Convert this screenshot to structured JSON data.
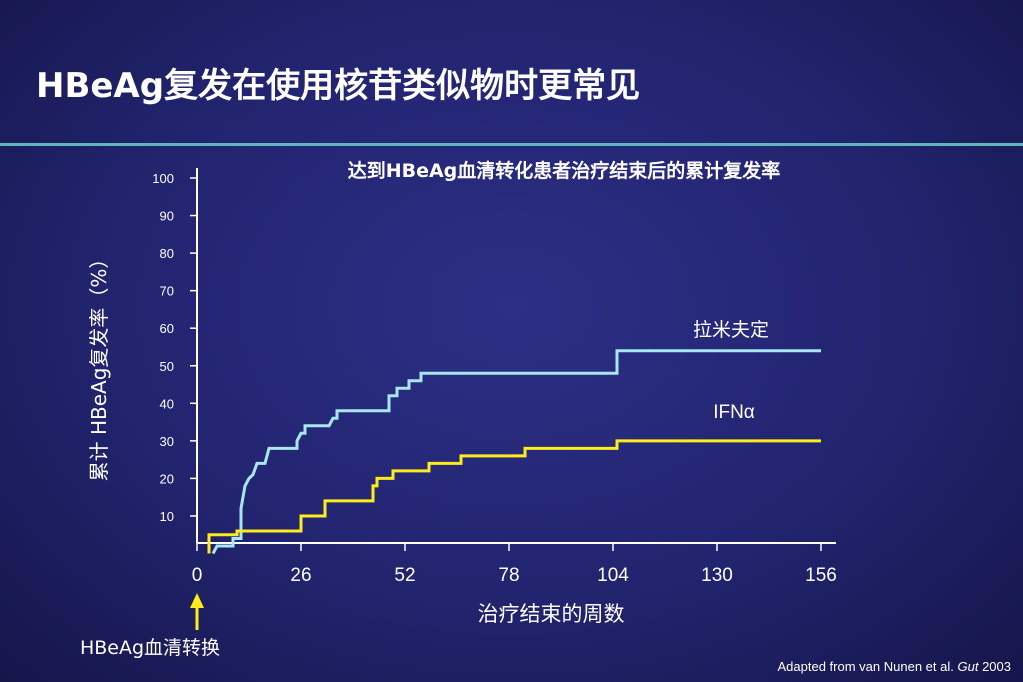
{
  "slide": {
    "title": "HBeAg复发在使用核苷类似物时更常见",
    "citation_prefix": "Adapted from van Nunen et al.",
    "citation_journal": "Gut",
    "citation_year": "2003"
  },
  "colors": {
    "background": "#22246f",
    "title_rule": "#5fb7bd",
    "lamivudine": "#a8e6f0",
    "ifn": "#ffec1a",
    "arrow": "#ffec1a"
  },
  "chart_data": {
    "type": "line",
    "step": true,
    "title": "达到HBeAg血清转化患者治疗结束后的累计复发率",
    "xlabel": "治疗结束的周数",
    "ylabel": "累计 HBeAg复发率（%）",
    "xlim": [
      0,
      160
    ],
    "ylim": [
      0,
      100
    ],
    "xticks": [
      0,
      26,
      52,
      78,
      104,
      130,
      156
    ],
    "yticks": [
      10,
      20,
      30,
      40,
      50,
      60,
      70,
      80,
      90,
      100
    ],
    "grid": false,
    "annotation": "HBeAg血清转换",
    "series": [
      {
        "name": "拉米夫定",
        "color": "#a8e6f0",
        "points": [
          [
            4,
            0
          ],
          [
            5,
            2
          ],
          [
            9,
            2
          ],
          [
            9,
            4
          ],
          [
            11,
            4
          ],
          [
            11,
            12
          ],
          [
            12,
            18
          ],
          [
            13,
            20
          ],
          [
            14,
            21
          ],
          [
            15,
            24
          ],
          [
            17,
            24
          ],
          [
            18,
            28
          ],
          [
            25,
            28
          ],
          [
            25,
            30
          ],
          [
            26,
            32
          ],
          [
            27,
            32
          ],
          [
            27,
            34
          ],
          [
            33,
            34
          ],
          [
            34,
            36
          ],
          [
            35,
            36
          ],
          [
            35,
            38
          ],
          [
            48,
            38
          ],
          [
            48,
            42
          ],
          [
            50,
            42
          ],
          [
            50,
            44
          ],
          [
            53,
            44
          ],
          [
            53,
            46
          ],
          [
            56,
            46
          ],
          [
            56,
            48
          ],
          [
            105,
            48
          ],
          [
            105,
            54
          ],
          [
            156,
            54
          ]
        ]
      },
      {
        "name": "IFNα",
        "color": "#ffec1a",
        "points": [
          [
            3,
            0
          ],
          [
            3,
            5
          ],
          [
            10,
            5
          ],
          [
            10,
            6
          ],
          [
            26,
            6
          ],
          [
            26,
            10
          ],
          [
            32,
            10
          ],
          [
            32,
            14
          ],
          [
            44,
            14
          ],
          [
            44,
            18
          ],
          [
            45,
            18
          ],
          [
            45,
            20
          ],
          [
            49,
            20
          ],
          [
            49,
            22
          ],
          [
            58,
            22
          ],
          [
            58,
            24
          ],
          [
            66,
            24
          ],
          [
            66,
            26
          ],
          [
            82,
            26
          ],
          [
            82,
            28
          ],
          [
            105,
            28
          ],
          [
            105,
            30
          ],
          [
            156,
            30
          ]
        ]
      }
    ]
  }
}
